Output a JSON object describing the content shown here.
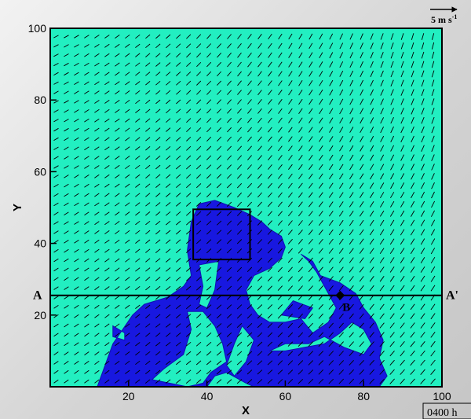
{
  "chart_data": {
    "type": "vector_field_map",
    "xlabel": "X",
    "ylabel": "Y",
    "xlim": [
      0,
      100
    ],
    "ylim": [
      0,
      100
    ],
    "x_ticks": [
      20,
      40,
      60,
      80,
      100
    ],
    "y_ticks": [
      20,
      40,
      60,
      80,
      100
    ],
    "colors": {
      "background": "#22efc1",
      "region": "#1818e0",
      "vector": "#000000"
    },
    "vector_scale": {
      "label": "5 m s",
      "exponent": "-1"
    },
    "cross_section": {
      "start_label": "A",
      "end_label": "A'",
      "y": 25.5,
      "x_from": 0,
      "x_to": 100
    },
    "point": {
      "label": "B",
      "x": 74,
      "y": 25.5
    },
    "box": {
      "x0": 36.5,
      "y0": 35.5,
      "x1": 51,
      "y1": 49.5
    },
    "regions": [
      [
        [
          12,
          0
        ],
        [
          16,
          12
        ],
        [
          21,
          20
        ],
        [
          24,
          23
        ],
        [
          30,
          25
        ],
        [
          34,
          28
        ],
        [
          36,
          31
        ],
        [
          35,
          38
        ],
        [
          36,
          46
        ],
        [
          38,
          51
        ],
        [
          42,
          52
        ],
        [
          47,
          50
        ],
        [
          51,
          48
        ],
        [
          54,
          46
        ],
        [
          56,
          44
        ],
        [
          59,
          42
        ],
        [
          60,
          39
        ],
        [
          59,
          36
        ],
        [
          56,
          33
        ],
        [
          52,
          31
        ],
        [
          50,
          27
        ],
        [
          51,
          23
        ],
        [
          53,
          20
        ],
        [
          56,
          18
        ],
        [
          60,
          18
        ],
        [
          64,
          19
        ],
        [
          67,
          15
        ],
        [
          71,
          18
        ],
        [
          73,
          22
        ],
        [
          71,
          26
        ],
        [
          68,
          32
        ],
        [
          66,
          35
        ],
        [
          64,
          37
        ],
        [
          67,
          35
        ],
        [
          69,
          31
        ],
        [
          74,
          29
        ],
        [
          78,
          26
        ],
        [
          80,
          22
        ],
        [
          83,
          18
        ],
        [
          85,
          13
        ],
        [
          84,
          8
        ],
        [
          86,
          3
        ],
        [
          84,
          0
        ]
      ],
      [
        [
          26,
          2
        ],
        [
          29,
          5
        ],
        [
          34,
          9
        ],
        [
          36,
          16
        ],
        [
          35,
          21
        ],
        [
          39,
          21
        ],
        [
          42,
          17
        ],
        [
          44,
          12
        ],
        [
          45,
          7
        ],
        [
          41,
          4
        ],
        [
          39,
          1
        ],
        [
          35,
          0
        ]
      ],
      [
        [
          16,
          17
        ],
        [
          19,
          15
        ],
        [
          19,
          13
        ],
        [
          16,
          14
        ]
      ]
    ],
    "holes": [
      [
        [
          38,
          23
        ],
        [
          39,
          28
        ],
        [
          38,
          34
        ],
        [
          43,
          35
        ],
        [
          42,
          27
        ],
        [
          40,
          22
        ]
      ],
      [
        [
          59,
          20
        ],
        [
          62,
          24
        ],
        [
          67,
          22
        ],
        [
          65,
          19
        ]
      ],
      [
        [
          56,
          10
        ],
        [
          60,
          12
        ],
        [
          66,
          12
        ],
        [
          70,
          14
        ],
        [
          75,
          11
        ],
        [
          80,
          9
        ],
        [
          82,
          12
        ],
        [
          80,
          16
        ],
        [
          77,
          18
        ],
        [
          74,
          15
        ],
        [
          70,
          12
        ],
        [
          65,
          11
        ],
        [
          60,
          10
        ]
      ],
      [
        [
          47,
          3
        ],
        [
          50,
          7
        ],
        [
          52,
          13
        ],
        [
          49,
          17
        ],
        [
          47,
          12
        ],
        [
          45,
          6
        ]
      ],
      [
        [
          40,
          0
        ],
        [
          42,
          3
        ],
        [
          45,
          4
        ],
        [
          50,
          1
        ],
        [
          52,
          0
        ]
      ]
    ]
  },
  "footer": {
    "time_label": "0400 h"
  }
}
